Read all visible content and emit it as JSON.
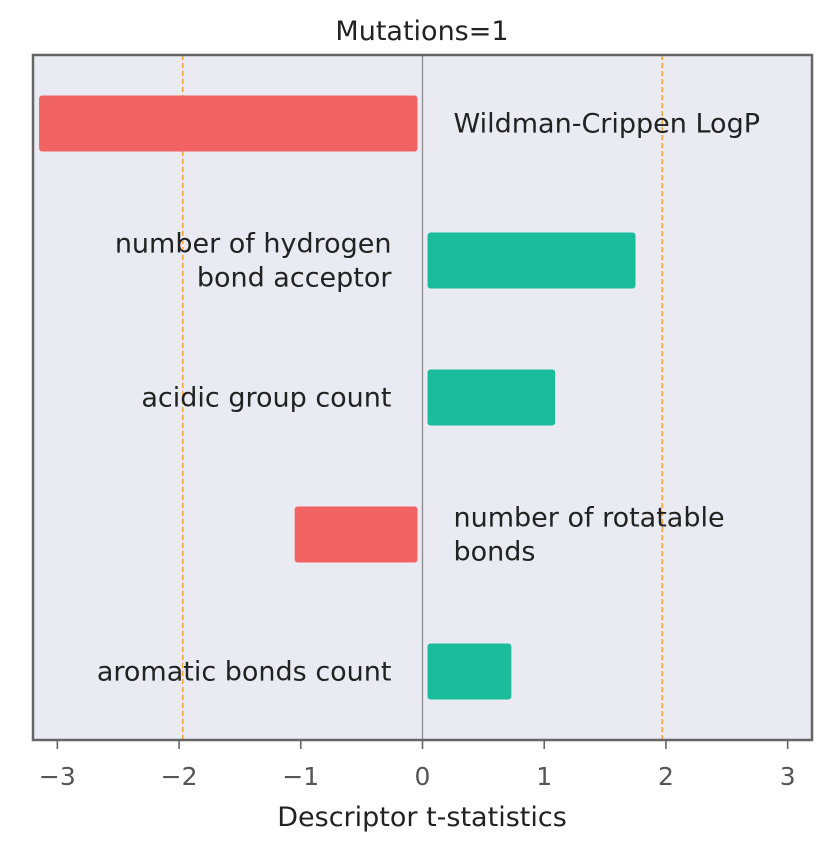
{
  "chart_data": {
    "type": "bar",
    "orientation": "horizontal",
    "title": "Mutations=1",
    "xlabel": "Descriptor t-statistics",
    "ylabel": "",
    "xlim": [
      -3.2,
      3.2
    ],
    "xticks": [
      -3,
      -2,
      -1,
      0,
      1,
      2,
      3
    ],
    "xtick_labels": [
      "−3",
      "−2",
      "−1",
      "0",
      "1",
      "2",
      "3"
    ],
    "threshold_lines": [
      -1.97,
      1.97
    ],
    "categories": [
      "Wildman-Crippen LogP",
      "number of hydrogen bond acceptor",
      "acidic group count",
      "number of rotatable bonds",
      "aromatic bonds count"
    ],
    "category_label_lines": [
      [
        "Wildman-Crippen LogP"
      ],
      [
        "number of hydrogen",
        "bond acceptor"
      ],
      [
        "acidic group count"
      ],
      [
        "number of rotatable",
        "bonds"
      ],
      [
        "aromatic bonds count"
      ]
    ],
    "values": [
      -3.15,
      1.75,
      1.09,
      -1.05,
      0.73
    ],
    "grid": false,
    "legend": "none",
    "colors": {
      "positive": "#1abc9c",
      "negative": "#f16263",
      "threshold": "#f5a53c",
      "zero_line": "#8c8c8c",
      "plot_background": "#eaeaf2",
      "frame": "#666666"
    }
  }
}
